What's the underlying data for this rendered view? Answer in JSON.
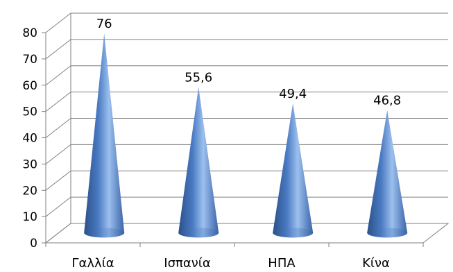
{
  "chart_data": {
    "type": "bar",
    "shape": "cone",
    "categories": [
      "Γαλλία",
      "Ισπανία",
      "ΗΠΑ",
      "Κίνα"
    ],
    "values": [
      76,
      55.6,
      49.4,
      46.8
    ],
    "data_labels": [
      "76",
      "55,6",
      "49,4",
      "46,8"
    ],
    "y_ticks": [
      "0",
      "10",
      "20",
      "30",
      "40",
      "50",
      "60",
      "70",
      "80"
    ],
    "ylim": [
      0,
      80
    ],
    "grid": true,
    "legend": "none",
    "title": "",
    "xlabel": "",
    "ylabel": "",
    "colors": {
      "cone_dark": "#2b5089",
      "cone_mid": "#4a7ac2",
      "cone_light": "#9cc0ee",
      "grid": "#7f7f7f"
    }
  }
}
